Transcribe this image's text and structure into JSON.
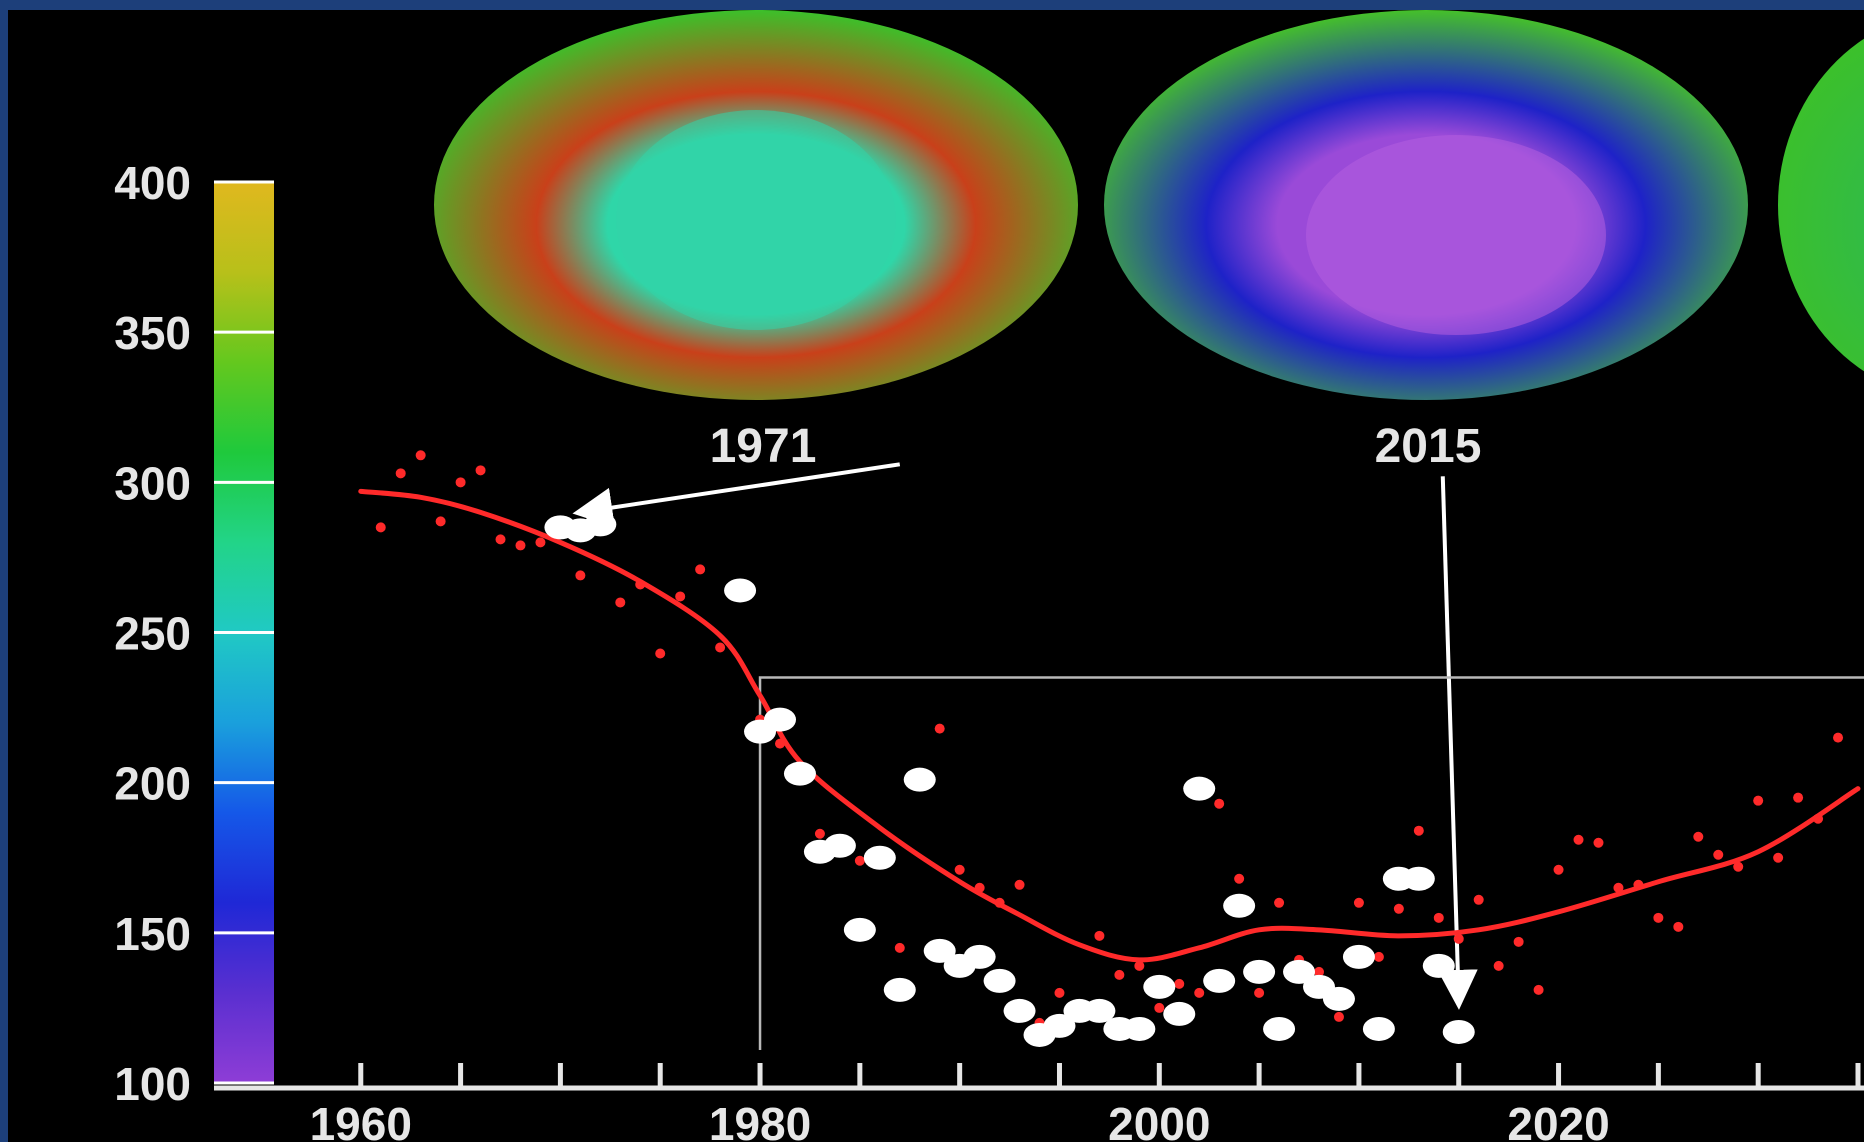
{
  "chart_data": {
    "type": "scatter",
    "title": "",
    "xlabel": "",
    "ylabel": "",
    "xlim": [
      1954,
      2035
    ],
    "ylim": [
      100,
      400
    ],
    "x_ticks": [
      1960,
      1980,
      2000,
      2020
    ],
    "y_ticks": [
      100,
      150,
      200,
      250,
      300,
      350,
      400
    ],
    "grid": false,
    "colorbar": {
      "range": [
        100,
        400
      ],
      "colors": [
        "#8e3dd6",
        "#5a2fd0",
        "#1f28d6",
        "#1558e8",
        "#1aa0dc",
        "#20c9c4",
        "#22d488",
        "#1fc93c",
        "#64c81e",
        "#b8c01a",
        "#e0b81e"
      ]
    },
    "globes": [
      {
        "label": "1971",
        "center_color": "#2fd6a8",
        "ring_color": "#c9401a",
        "edge_color": "#3cc02a"
      },
      {
        "label": "2015",
        "center_color": "#9a4ad8",
        "ring_color": "#1e22c8",
        "edge_color": "#45c02a"
      }
    ],
    "series": [
      {
        "marker": "red-dots",
        "color": "#ff2a2a",
        "x": [
          1961,
          1962,
          1963,
          1964,
          1965,
          1966,
          1967,
          1968,
          1969,
          1970,
          1971,
          1972,
          1973,
          1974,
          1975,
          1976,
          1977,
          1978,
          1979,
          1980,
          1981,
          1982,
          1983,
          1984,
          1985,
          1986,
          1987,
          1988,
          1989,
          1990,
          1991,
          1992,
          1993,
          1994,
          1995,
          1996,
          1997,
          1998,
          1999,
          2000,
          2001,
          2002,
          2003,
          2004,
          2005,
          2006,
          2007,
          2008,
          2009,
          2010,
          2011,
          2012,
          2013,
          2014,
          2015,
          2016,
          2017,
          2018,
          2019,
          2020,
          2021,
          2022,
          2023,
          2024,
          2025,
          2026,
          2027,
          2028,
          2029,
          2030,
          2031,
          2032,
          2033,
          2034
        ],
        "y": [
          285,
          303,
          309,
          287,
          300,
          304,
          281,
          279,
          280,
          285,
          269,
          288,
          260,
          266,
          243,
          262,
          271,
          245,
          264,
          221,
          213,
          203,
          183,
          178,
          174,
          173,
          145,
          200,
          218,
          171,
          165,
          160,
          166,
          120,
          130,
          126,
          149,
          136,
          139,
          125,
          133,
          130,
          193,
          168,
          130,
          160,
          141,
          137,
          122,
          160,
          142,
          158,
          184,
          155,
          148,
          161,
          139,
          147,
          131,
          171,
          181,
          180,
          165,
          166,
          155,
          152,
          182,
          176,
          172,
          194,
          175,
          195,
          188,
          215
        ]
      },
      {
        "marker": "white-dots",
        "color": "#ffffff",
        "x": [
          1970,
          1971,
          1972,
          1979,
          1980,
          1981,
          1982,
          1983,
          1984,
          1986,
          1985,
          1987,
          1988,
          1989,
          1990,
          1991,
          1992,
          1993,
          1994,
          1995,
          1996,
          1997,
          1998,
          1999,
          2000,
          2001,
          2002,
          2003,
          2004,
          2005,
          2006,
          2007,
          2008,
          2009,
          2010,
          2011,
          2012,
          2013,
          2014,
          2015
        ],
        "y": [
          285,
          284,
          286,
          264,
          217,
          221,
          203,
          177,
          179,
          175,
          151,
          131,
          201,
          144,
          139,
          142,
          134,
          124,
          116,
          119,
          124,
          124,
          118,
          118,
          132,
          123,
          198,
          134,
          159,
          137,
          118,
          137,
          132,
          128,
          142,
          118,
          168,
          168,
          139,
          117
        ]
      }
    ],
    "trend_line": {
      "color": "#ff2a2a",
      "x": [
        1960,
        1963,
        1966,
        1970,
        1974,
        1978,
        1980,
        1982,
        1986,
        1990,
        1993,
        1996,
        1999,
        2002,
        2005,
        2008,
        2012,
        2016,
        2020,
        2025,
        2030,
        2035
      ],
      "y": [
        297,
        295,
        290,
        280,
        267,
        249,
        229,
        207,
        185,
        167,
        156,
        146,
        141,
        145,
        151,
        151,
        149,
        151,
        157,
        167,
        177,
        198
      ]
    },
    "annotations": [
      {
        "type": "arrow",
        "from": [
          1987,
          306
        ],
        "to": [
          1971,
          290
        ]
      },
      {
        "type": "arrow",
        "from": [
          2014.2,
          302
        ],
        "to": [
          2015,
          127
        ]
      },
      {
        "type": "line-bracket",
        "x": 1980,
        "y": 235
      }
    ]
  }
}
